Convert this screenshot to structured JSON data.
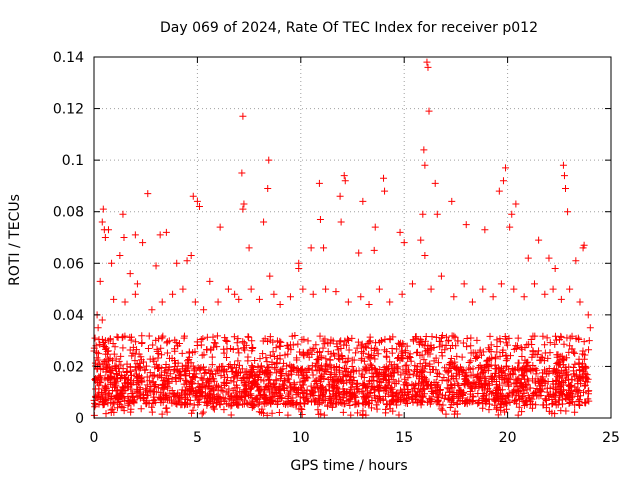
{
  "chart_data": {
    "type": "scatter",
    "title": "Day 069 of 2024, Rate Of TEC Index for receiver p012",
    "xlabel": "GPS time / hours",
    "ylabel": "ROTI / TECUs",
    "xlim": [
      0,
      25
    ],
    "ylim": [
      0,
      0.14
    ],
    "x_ticks": [
      0,
      5,
      10,
      15,
      20,
      25
    ],
    "x_tick_labels": [
      "0",
      "5",
      "10",
      "15",
      "20",
      "25"
    ],
    "y_ticks": [
      0,
      0.02,
      0.04,
      0.06,
      0.08,
      0.1,
      0.12,
      0.14
    ],
    "y_tick_labels": [
      "0",
      "0.02",
      "0.04",
      "0.06",
      "0.08",
      "0.1",
      "0.12",
      "0.14"
    ],
    "grid": true,
    "marker": "plus",
    "color": "#ff0000",
    "series": [
      {
        "name": "ROTI",
        "points": [
          [
            16.1,
            0.138
          ],
          [
            16.15,
            0.136
          ],
          [
            16.2,
            0.119
          ],
          [
            7.2,
            0.117
          ],
          [
            8.45,
            0.1
          ],
          [
            16.0,
            0.098
          ],
          [
            15.95,
            0.104
          ],
          [
            22.7,
            0.098
          ],
          [
            22.75,
            0.094
          ],
          [
            19.9,
            0.097
          ],
          [
            12.1,
            0.094
          ],
          [
            12.15,
            0.092
          ],
          [
            14.0,
            0.093
          ],
          [
            7.15,
            0.095
          ],
          [
            16.5,
            0.091
          ],
          [
            22.8,
            0.089
          ],
          [
            19.8,
            0.092
          ],
          [
            10.9,
            0.091
          ],
          [
            2.6,
            0.087
          ],
          [
            4.8,
            0.086
          ],
          [
            5.0,
            0.084
          ],
          [
            8.4,
            0.089
          ],
          [
            14.05,
            0.088
          ],
          [
            7.25,
            0.083
          ],
          [
            7.2,
            0.081
          ],
          [
            19.6,
            0.088
          ],
          [
            17.3,
            0.084
          ],
          [
            13.0,
            0.084
          ],
          [
            0.45,
            0.081
          ],
          [
            0.4,
            0.076
          ],
          [
            0.5,
            0.073
          ],
          [
            0.55,
            0.07
          ],
          [
            1.4,
            0.079
          ],
          [
            5.1,
            0.082
          ],
          [
            11.9,
            0.086
          ],
          [
            15.9,
            0.079
          ],
          [
            15.8,
            0.069
          ],
          [
            18.0,
            0.075
          ],
          [
            20.4,
            0.083
          ],
          [
            20.2,
            0.079
          ],
          [
            20.1,
            0.074
          ],
          [
            11.95,
            0.076
          ],
          [
            8.2,
            0.076
          ],
          [
            13.6,
            0.074
          ],
          [
            10.95,
            0.077
          ],
          [
            22.9,
            0.08
          ],
          [
            23.7,
            0.067
          ],
          [
            23.65,
            0.066
          ],
          [
            7.5,
            0.066
          ],
          [
            3.5,
            0.072
          ],
          [
            14.8,
            0.072
          ],
          [
            16.6,
            0.079
          ],
          [
            6.1,
            0.074
          ],
          [
            2.0,
            0.071
          ],
          [
            3.2,
            0.071
          ],
          [
            0.7,
            0.073
          ],
          [
            1.25,
            0.063
          ],
          [
            1.45,
            0.07
          ],
          [
            2.35,
            0.068
          ],
          [
            4.0,
            0.06
          ],
          [
            4.5,
            0.061
          ],
          [
            4.7,
            0.063
          ],
          [
            9.9,
            0.06
          ],
          [
            10.5,
            0.066
          ],
          [
            11.1,
            0.066
          ],
          [
            12.8,
            0.064
          ],
          [
            13.55,
            0.065
          ],
          [
            15.0,
            0.068
          ],
          [
            16.0,
            0.063
          ],
          [
            18.9,
            0.073
          ],
          [
            21.0,
            0.062
          ],
          [
            21.5,
            0.069
          ],
          [
            22.3,
            0.058
          ],
          [
            22.0,
            0.062
          ],
          [
            23.3,
            0.061
          ],
          [
            9.9,
            0.058
          ],
          [
            8.5,
            0.055
          ],
          [
            6.5,
            0.05
          ],
          [
            5.6,
            0.053
          ],
          [
            3.0,
            0.059
          ],
          [
            2.1,
            0.052
          ],
          [
            1.75,
            0.056
          ],
          [
            0.85,
            0.06
          ],
          [
            0.3,
            0.053
          ],
          [
            0.15,
            0.04
          ],
          [
            0.2,
            0.035
          ],
          [
            0.1,
            0.028
          ],
          [
            0.0,
            0.026
          ],
          [
            0.05,
            0.031
          ],
          [
            0.4,
            0.038
          ],
          [
            0.95,
            0.046
          ],
          [
            1.5,
            0.045
          ],
          [
            2.0,
            0.048
          ],
          [
            2.8,
            0.042
          ],
          [
            3.3,
            0.045
          ],
          [
            3.8,
            0.048
          ],
          [
            4.3,
            0.05
          ],
          [
            4.9,
            0.045
          ],
          [
            5.3,
            0.042
          ],
          [
            6.0,
            0.045
          ],
          [
            6.8,
            0.048
          ],
          [
            7.0,
            0.046
          ],
          [
            7.6,
            0.05
          ],
          [
            8.0,
            0.046
          ],
          [
            8.7,
            0.048
          ],
          [
            9.0,
            0.044
          ],
          [
            9.5,
            0.047
          ],
          [
            10.1,
            0.05
          ],
          [
            10.6,
            0.048
          ],
          [
            11.2,
            0.05
          ],
          [
            11.7,
            0.049
          ],
          [
            12.3,
            0.045
          ],
          [
            12.9,
            0.047
          ],
          [
            13.3,
            0.044
          ],
          [
            13.8,
            0.05
          ],
          [
            14.3,
            0.045
          ],
          [
            14.9,
            0.048
          ],
          [
            15.4,
            0.052
          ],
          [
            16.3,
            0.05
          ],
          [
            16.8,
            0.055
          ],
          [
            17.4,
            0.047
          ],
          [
            17.9,
            0.052
          ],
          [
            18.3,
            0.045
          ],
          [
            18.8,
            0.05
          ],
          [
            19.3,
            0.047
          ],
          [
            19.7,
            0.052
          ],
          [
            20.3,
            0.05
          ],
          [
            20.8,
            0.047
          ],
          [
            21.3,
            0.052
          ],
          [
            21.8,
            0.048
          ],
          [
            22.2,
            0.05
          ],
          [
            22.6,
            0.046
          ],
          [
            23.0,
            0.05
          ],
          [
            23.5,
            0.045
          ],
          [
            23.9,
            0.04
          ],
          [
            24.0,
            0.035
          ],
          [
            23.95,
            0.03
          ]
        ]
      }
    ],
    "dense_band": {
      "note": "dense cluster of points across the full day",
      "x_range": [
        0,
        24
      ],
      "typical_low": 0.005,
      "typical_high": 0.02,
      "min": 0.001
    }
  }
}
